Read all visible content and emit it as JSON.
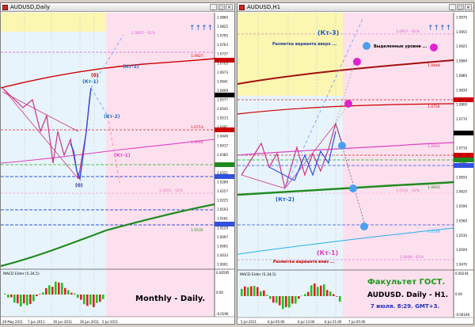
{
  "left_window": {
    "title": "AUDUSD,Daily",
    "price_ticks": [
      "1.0860",
      "1.0825",
      "1.0795",
      "1.0763",
      "1.0737",
      "1.0705",
      "1.0673",
      "1.0641",
      "1.0609",
      "1.0577",
      "1.0545",
      "1.0513",
      "1.0481",
      "1.0449",
      "1.0417",
      "1.0385",
      "1.0353",
      "1.0321",
      "1.0289",
      "1.0257",
      "1.0225",
      "1.0193",
      "1.0161",
      "1.0129",
      "1.0097",
      "1.0065",
      "1.0033",
      "1.0001"
    ],
    "date_ticks": [
      "29 May 2011",
      "7 Jun 2011",
      "16 Jun 2011",
      "26 Jun 2011",
      "5 Jul 2011"
    ],
    "labels": {
      "wave_top": "(0)",
      "wave_kt1_up": "(Кт-1)",
      "wave_kt2": "(Кт-2)",
      "wave_kt3": "(Кт-3)",
      "wave_kt1": "(Кт-1)",
      "wave_bottom": "(0)"
    },
    "level_tags": [
      "1.0837 - 61%",
      "1.0927",
      "1.0713",
      "1.0648",
      "1.0501 - 62%",
      "1.0535"
    ],
    "macd_label": "MACD Elder (5,34,5)",
    "macd_ticks": [
      "0.00595",
      "0.00",
      "-0.0190"
    ],
    "caption": "Monthly - Daily."
  },
  "right_window": {
    "title": "AUDUSD,H1",
    "price_ticks": [
      "1.0970",
      "1.0955",
      "1.0925",
      "1.0890",
      "1.0860",
      "1.0830",
      "1.0800",
      "1.0770",
      "1.0740",
      "1.0710",
      "1.0680",
      "1.0650",
      "1.0620",
      "1.0590",
      "1.0560",
      "1.0530",
      "1.0500",
      "1.0470"
    ],
    "date_ticks": [
      "5 Jul 2011",
      "6 Jul 05:00",
      "6 Jul 13:00",
      "6 Jul 21:00",
      "7 Jul 05:00"
    ],
    "labels": {
      "kt3": "(Кт-3)",
      "up_variant": "Разметка варианта вверх ...",
      "levels": "Выделенные уровни ...",
      "kt2": "(Кт-2)",
      "kt1": "(Кт-1)",
      "down_variant": "Разметка варианта вниз ..."
    },
    "level_tags": [
      "1.0937 - 61%",
      "1.0848",
      "1.0756",
      "1.0683",
      "1.0603",
      "1.0549",
      "1.0501 - 62%",
      "1.0448 - 61%"
    ],
    "macd_label": "MACD Elder (5,34,5)",
    "macd_ticks": [
      "0.00244",
      "0.00",
      "-0.00168"
    ],
    "caption_title": "Факультет ГОСТ.",
    "caption_symbol": "AUDUSD. Daily - H1.",
    "caption_date": "7 июля. 8:29. GMT+3."
  },
  "colors": {
    "hl_blue": "#e8f4fb",
    "hl_yellow": "#fbf6b0",
    "hl_pink": "#fde0ee",
    "red_line": "#cc0000",
    "green_line": "#1f8a1f",
    "magenta_line": "#e040c0",
    "blue_line": "#3070ff",
    "cyan_line": "#20b0e8",
    "zigzag": "#cc3388"
  }
}
